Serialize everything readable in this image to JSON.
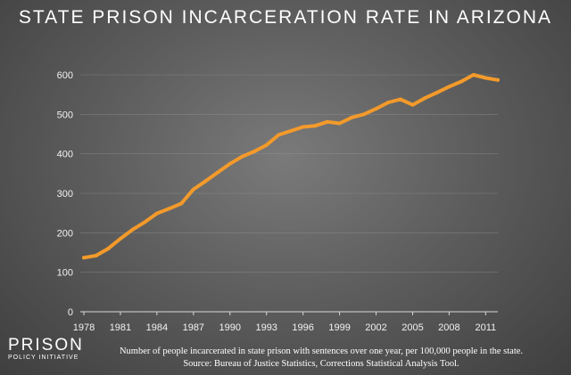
{
  "chart_data": {
    "type": "line",
    "title": "STATE PRISON INCARCERATION RATE IN ARIZONA",
    "xlabel": "",
    "ylabel": "",
    "x": [
      1978,
      1979,
      1980,
      1981,
      1982,
      1983,
      1984,
      1985,
      1986,
      1987,
      1988,
      1989,
      1990,
      1991,
      1992,
      1993,
      1994,
      1995,
      1996,
      1997,
      1998,
      1999,
      2000,
      2001,
      2002,
      2003,
      2004,
      2005,
      2006,
      2007,
      2008,
      2009,
      2010,
      2011,
      2012
    ],
    "series": [
      {
        "values": [
          137,
          142,
          160,
          185,
          208,
          227,
          249,
          261,
          274,
          310,
          331,
          353,
          375,
          393,
          406,
          422,
          448,
          458,
          468,
          471,
          481,
          477,
          492,
          500,
          514,
          530,
          538,
          524,
          541,
          555,
          570,
          583,
          600,
          592,
          587
        ]
      }
    ],
    "xlim": [
      1978,
      2012
    ],
    "ylim": [
      0,
      600
    ],
    "x_ticks": [
      "1978",
      "1981",
      "1984",
      "1987",
      "1990",
      "1993",
      "1996",
      "1999",
      "2002",
      "2005",
      "2008",
      "2011"
    ],
    "y_ticks": [
      "0",
      "100",
      "200",
      "300",
      "400",
      "500",
      "600"
    ],
    "grid": true,
    "line_color": "#f39a2b",
    "grid_color": "#9a9a9a"
  },
  "logo": {
    "main": "PRISON",
    "sub": "POLICY INITIATIVE"
  },
  "footnote": {
    "line1": "Number of people incarcerated in state prison with sentences over one year, per 100,000 people in the state.",
    "line2": "Source: Bureau of Justice Statistics, Corrections Statistical Analysis Tool."
  }
}
